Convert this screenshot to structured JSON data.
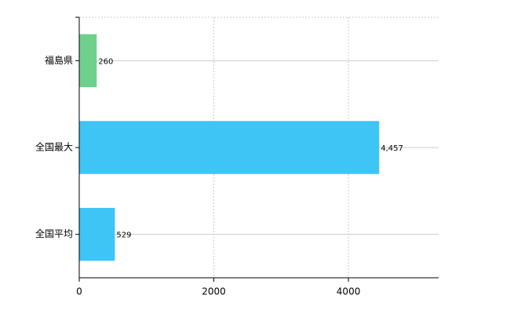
{
  "chart_data": {
    "type": "bar",
    "orientation": "horizontal",
    "categories": [
      "福島県",
      "全国最大",
      "全国平均"
    ],
    "values": [
      260,
      4457,
      529
    ],
    "value_labels": [
      "260",
      "4,457",
      "529"
    ],
    "colors": [
      "#6fd08c",
      "#3ec4f5",
      "#3ec4f5"
    ],
    "xlim": [
      0,
      5340
    ],
    "xticks": [
      0,
      2000,
      4000
    ],
    "grid": true
  }
}
